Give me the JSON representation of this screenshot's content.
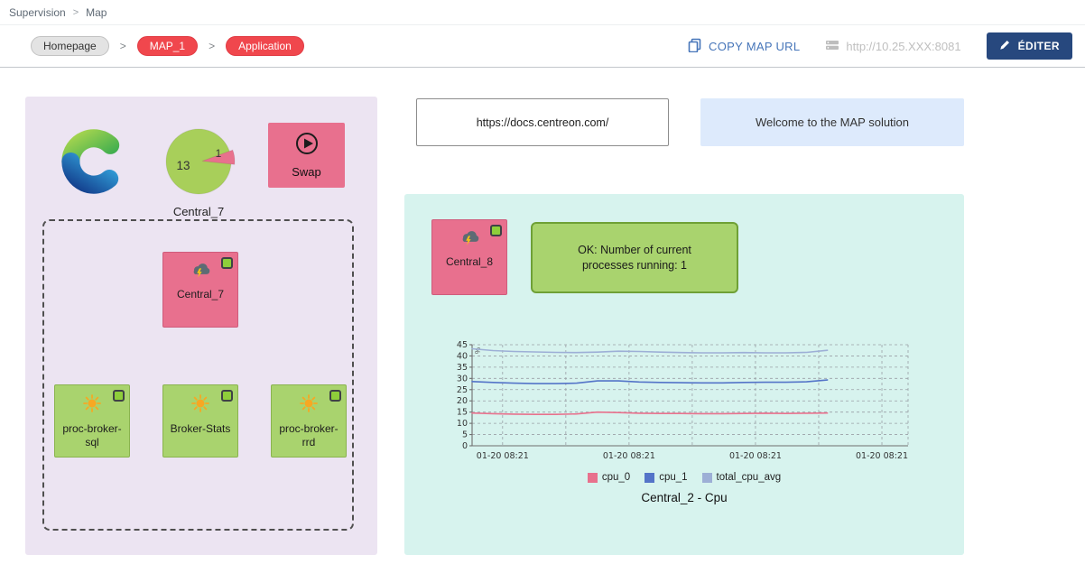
{
  "topbar": {
    "items": [
      "Supervision",
      "Map"
    ],
    "separator": ">"
  },
  "toolbar": {
    "path": [
      {
        "label": "Homepage",
        "style": "gray"
      },
      {
        "label": "MAP_1",
        "style": "red"
      },
      {
        "label": "Application",
        "style": "red"
      }
    ],
    "separator": ">",
    "copy_url_label": "COPY MAP URL",
    "server_url": "http://10.25.XXX:8081",
    "edit_button": "ÉDITER"
  },
  "canvas": {
    "left_panel": {
      "gauge": {
        "value_main": "13",
        "value_slice": "1",
        "label": "Central_7"
      },
      "swap_label": "Swap",
      "group": {
        "central7_label": "Central_7",
        "nodes": [
          "proc-broker-sql",
          "Broker-Stats",
          "proc-broker-rrd"
        ]
      }
    },
    "url_box_text": "https://docs.centreon.com/",
    "welcome_text": "Welcome to the MAP solution",
    "right_panel": {
      "central8_label": "Central_8",
      "status_text": "OK: Number of current processes running: 1"
    }
  },
  "icons": {
    "copy_map_url": "copy-icon",
    "server": "server-icon",
    "edit": "pencil-icon",
    "swap": "play-circle-icon",
    "central_nodes": "storm-cloud-icon",
    "broker_nodes": "sun-icon",
    "status": "green-status-square",
    "brand": "centreon-logo"
  },
  "colors": {
    "pill_red": "#f0474d",
    "edit_button_blue": "#27487e",
    "copy_link_blue": "#4675b9",
    "node_pink": "#e8708e",
    "node_green": "#a9d36e",
    "status_green": "#8ece3a",
    "panel_lavender": "#ece4f2",
    "panel_teal": "#d7f3ee",
    "welcome_blue": "#ddeafc"
  },
  "chart_data": {
    "type": "line",
    "title": "Central_2 - Cpu",
    "xlabel": "",
    "ylabel": "%",
    "ylim": [
      0,
      45
    ],
    "yticks": [
      0,
      5,
      10,
      15,
      20,
      25,
      30,
      35,
      40,
      45
    ],
    "xticklabels": [
      "01-20 08:21",
      "01-20 08:21",
      "01-20 08:21",
      "01-20 08:21"
    ],
    "grid": true,
    "legend_position": "bottom",
    "x_data_fraction": 0.815,
    "series": [
      {
        "name": "cpu_0",
        "color": "#e8718d",
        "values": [
          14.6,
          14.3,
          14.1,
          14.0,
          14.0,
          14.2,
          15.0,
          14.8,
          14.5,
          14.4,
          14.4,
          14.3,
          14.3,
          14.4,
          14.5,
          14.4,
          14.5,
          14.6
        ]
      },
      {
        "name": "cpu_1",
        "color": "#5474c8",
        "values": [
          28.6,
          28.2,
          27.9,
          27.7,
          27.7,
          27.9,
          28.9,
          28.9,
          28.4,
          28.2,
          28.1,
          28.0,
          28.0,
          28.2,
          28.3,
          28.3,
          28.5,
          29.3
        ]
      },
      {
        "name": "total_cpu_avg",
        "color": "#9dafd6",
        "values": [
          43.2,
          42.4,
          42.0,
          41.8,
          41.6,
          41.5,
          41.7,
          42.1,
          42.0,
          41.7,
          41.5,
          41.4,
          41.4,
          41.5,
          41.4,
          41.4,
          41.6,
          42.5
        ]
      }
    ]
  }
}
